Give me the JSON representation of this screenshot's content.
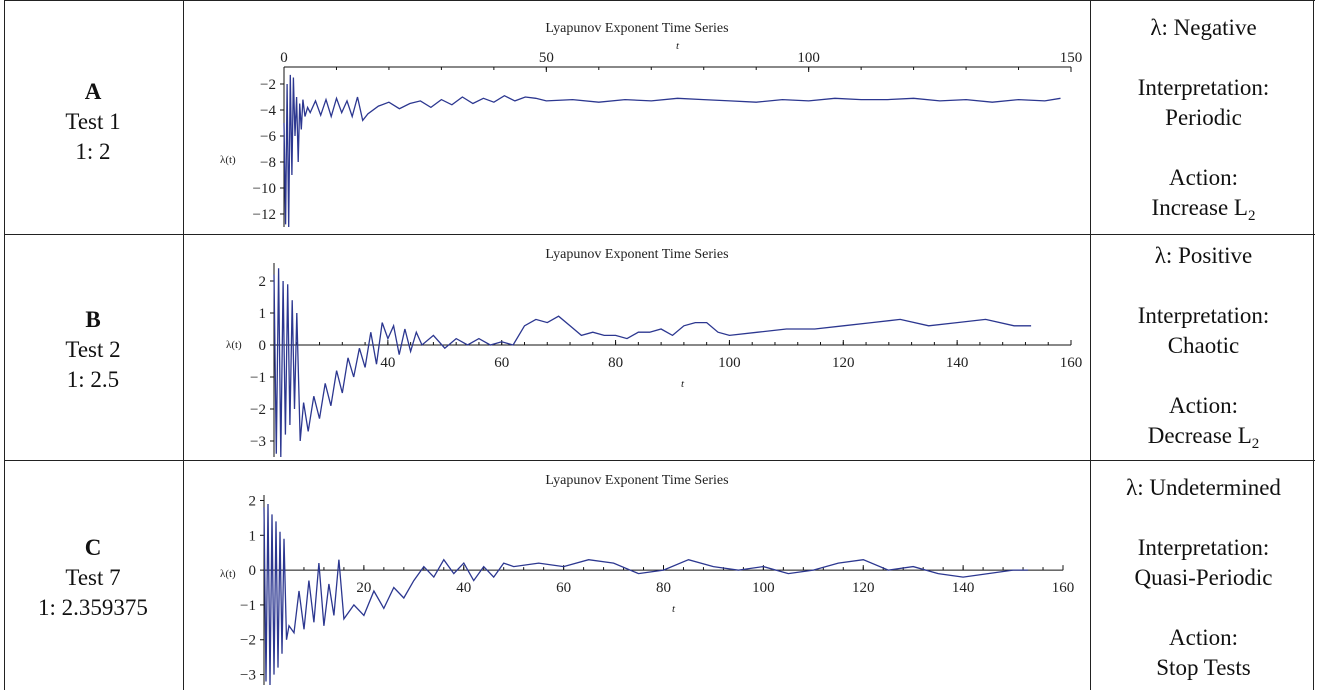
{
  "rows": [
    {
      "letter": "A",
      "test": "Test 1",
      "ratio": "1: 2",
      "lambda": "λ: Negative",
      "interpretation_label": "Interpretation:",
      "interpretation": "Periodic",
      "action_label": "Action:",
      "action": "Increase L",
      "action_sub": "2"
    },
    {
      "letter": "B",
      "test": "Test 2",
      "ratio": "1: 2.5",
      "lambda": "λ: Positive",
      "interpretation_label": "Interpretation:",
      "interpretation": "Chaotic",
      "action_label": "Action:",
      "action": "Decrease L",
      "action_sub": "2"
    },
    {
      "letter": "C",
      "test": "Test 7",
      "ratio": "1: 2.359375",
      "lambda": "λ: Undetermined",
      "interpretation_label": "Interpretation:",
      "interpretation": "Quasi-Periodic",
      "action_label": "Action:",
      "action": "Stop Tests",
      "action_sub": ""
    }
  ],
  "chart_data": [
    {
      "type": "line",
      "title": "Lyapunov Exponent Time Series",
      "xlabel": "t",
      "ylabel": "λ(t)",
      "xlim": [
        0,
        150
      ],
      "ylim": [
        -13,
        -1
      ],
      "x_axis_position": "top",
      "xticks": [
        0,
        50,
        100,
        150
      ],
      "yticks": [
        -2,
        -4,
        -6,
        -8,
        -10,
        -12
      ],
      "x": [
        0,
        0.3,
        0.6,
        0.9,
        1.2,
        1.5,
        1.8,
        2.1,
        2.4,
        2.7,
        3.0,
        3.3,
        3.6,
        4.0,
        4.5,
        5,
        6,
        7,
        8,
        9,
        10,
        11,
        12,
        13,
        14,
        15,
        16,
        18,
        20,
        22,
        24,
        26,
        28,
        30,
        32,
        34,
        36,
        38,
        40,
        42,
        44,
        46,
        48,
        50,
        55,
        60,
        65,
        70,
        75,
        80,
        85,
        90,
        95,
        100,
        105,
        110,
        115,
        120,
        125,
        130,
        135,
        140,
        145,
        148
      ],
      "y": [
        -5,
        -12.8,
        -2,
        -13,
        -1.3,
        -9,
        -1.5,
        -6,
        -3,
        -8,
        -3.5,
        -5.5,
        -3.2,
        -4.5,
        -3.8,
        -4.2,
        -3.3,
        -4.4,
        -3.2,
        -4.5,
        -3.1,
        -4.2,
        -3.3,
        -4.5,
        -3.0,
        -4.8,
        -4.3,
        -3.7,
        -3.4,
        -3.9,
        -3.5,
        -3.3,
        -3.8,
        -3.2,
        -3.6,
        -3.0,
        -3.5,
        -3.1,
        -3.4,
        -2.9,
        -3.3,
        -3.0,
        -3.1,
        -3.3,
        -3.2,
        -3.4,
        -3.2,
        -3.3,
        -3.1,
        -3.2,
        -3.3,
        -3.4,
        -3.2,
        -3.3,
        -3.1,
        -3.2,
        -3.2,
        -3.1,
        -3.3,
        -3.2,
        -3.4,
        -3.2,
        -3.3,
        -3.1
      ]
    },
    {
      "type": "line",
      "title": "Lyapunov Exponent Time Series",
      "xlabel": "t",
      "ylabel": "λ(t)",
      "xlim": [
        20,
        160
      ],
      "ylim": [
        -3.5,
        2.5
      ],
      "xticks": [
        40,
        60,
        80,
        100,
        120,
        140,
        160
      ],
      "yticks": [
        2,
        1,
        0,
        -1,
        -2,
        -3
      ],
      "x": [
        20,
        20.4,
        20.8,
        21.2,
        21.6,
        22,
        22.4,
        22.8,
        23.2,
        23.6,
        24,
        24.6,
        25.2,
        26,
        27,
        28,
        29,
        30,
        31,
        32,
        33,
        34,
        35,
        36,
        37,
        38,
        39,
        40,
        41,
        42,
        43,
        44,
        45,
        46,
        48,
        50,
        52,
        54,
        56,
        58,
        60,
        62,
        64,
        66,
        68,
        70,
        72,
        74,
        76,
        78,
        80,
        82,
        84,
        86,
        88,
        90,
        92,
        94,
        96,
        98,
        100,
        105,
        110,
        115,
        120,
        125,
        130,
        135,
        140,
        145,
        150,
        153
      ],
      "y": [
        2.2,
        -3.4,
        2.4,
        -3.5,
        2.0,
        -2.8,
        1.9,
        -2.5,
        1.4,
        -2.0,
        1.0,
        -3.0,
        -1.8,
        -2.7,
        -1.6,
        -2.3,
        -1.2,
        -1.9,
        -0.8,
        -1.5,
        -0.4,
        -1.0,
        -0.1,
        -0.7,
        0.4,
        -0.6,
        0.7,
        0.2,
        0.6,
        -0.3,
        0.5,
        -0.2,
        0.4,
        0.0,
        0.3,
        -0.1,
        0.2,
        0.0,
        0.2,
        0.0,
        0.1,
        0.0,
        0.6,
        0.8,
        0.7,
        0.9,
        0.6,
        0.3,
        0.4,
        0.3,
        0.3,
        0.2,
        0.4,
        0.4,
        0.5,
        0.3,
        0.6,
        0.7,
        0.7,
        0.4,
        0.3,
        0.4,
        0.5,
        0.5,
        0.6,
        0.7,
        0.8,
        0.6,
        0.7,
        0.8,
        0.6,
        0.6
      ]
    },
    {
      "type": "line",
      "title": "Lyapunov Exponent Time Series",
      "xlabel": "t",
      "ylabel": "λ(t)",
      "xlim": [
        0,
        160
      ],
      "ylim": [
        -3.3,
        2.1
      ],
      "xticks": [
        20,
        40,
        60,
        80,
        100,
        120,
        140,
        160
      ],
      "yticks": [
        2,
        1,
        0,
        -1,
        -2,
        -3
      ],
      "x": [
        0,
        0.4,
        0.8,
        1.2,
        1.6,
        2.0,
        2.4,
        2.8,
        3.2,
        3.6,
        4.0,
        4.5,
        5,
        6,
        7,
        8,
        9,
        10,
        11,
        12,
        13,
        14,
        15,
        16,
        18,
        20,
        22,
        24,
        26,
        28,
        30,
        32,
        34,
        36,
        38,
        40,
        42,
        44,
        46,
        48,
        50,
        55,
        60,
        65,
        70,
        75,
        80,
        85,
        90,
        95,
        100,
        105,
        110,
        115,
        120,
        125,
        130,
        135,
        140,
        145,
        150,
        153
      ],
      "y": [
        1.8,
        -3.2,
        1.9,
        -3.3,
        1.6,
        -3.0,
        1.4,
        -2.8,
        1.1,
        -2.4,
        0.9,
        -2.0,
        -1.6,
        -1.8,
        -0.6,
        -1.7,
        -0.3,
        -1.5,
        0.2,
        -1.6,
        -0.4,
        -1.3,
        0.3,
        -1.4,
        -1.0,
        -1.3,
        -0.6,
        -1.1,
        -0.5,
        -0.8,
        -0.3,
        0.1,
        -0.2,
        0.3,
        -0.1,
        0.2,
        -0.3,
        0.1,
        -0.2,
        0.2,
        0.1,
        0.2,
        0.1,
        0.3,
        0.2,
        -0.1,
        0.0,
        0.3,
        0.1,
        0.0,
        0.1,
        -0.1,
        0.0,
        0.2,
        0.3,
        0.0,
        0.1,
        -0.1,
        -0.2,
        -0.1,
        0.0,
        0.0
      ]
    }
  ]
}
